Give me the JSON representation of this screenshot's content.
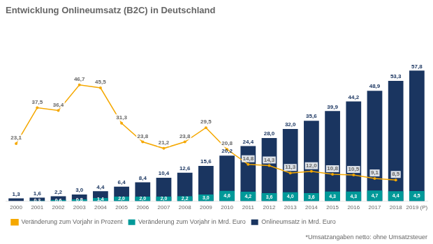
{
  "chart_data": {
    "type": "bar",
    "title": "Entwicklung Onlineumsatz (B2C) in Deutschland",
    "categories": [
      "2000",
      "2001",
      "2002",
      "2003",
      "2004",
      "2005",
      "2006",
      "2007",
      "2008",
      "2009",
      "2010",
      "2011",
      "2012",
      "2013",
      "2014",
      "2015",
      "2016",
      "2017",
      "2018",
      "2019 (P)"
    ],
    "series": [
      {
        "name": "Onlineumsatz in Mrd. Euro",
        "type": "bar",
        "color": "#1a3560",
        "values": [
          1.3,
          1.6,
          2.2,
          3.0,
          4.4,
          6.4,
          8.4,
          10.4,
          12.6,
          15.6,
          20.2,
          24.4,
          28.0,
          32.0,
          35.6,
          39.9,
          44.2,
          48.9,
          53.3,
          57.8
        ],
        "value_labels": [
          "1,3",
          "1,6",
          "2,2",
          "3,0",
          "4,4",
          "6,4",
          "8,4",
          "10,4",
          "12,6",
          "15,6",
          "20,2",
          "24,4",
          "28,0",
          "32,0",
          "35,6",
          "39,9",
          "44,2",
          "48,9",
          "53,3",
          "57,8"
        ]
      },
      {
        "name": "Veränderung zum Vorjahr in Prozent",
        "type": "line",
        "axis": "y2",
        "color": "#f5a800",
        "marker": "o",
        "values": [
          23.1,
          37.5,
          36.4,
          46.7,
          45.5,
          31.3,
          23.8,
          21.2,
          23.8,
          29.5,
          20.8,
          14.8,
          14.3,
          11.3,
          12.0,
          10.8,
          10.5,
          9.1,
          8.5,
          null
        ],
        "value_labels": [
          "23,1",
          "37,5",
          "36,4",
          "46,7",
          "45,5",
          "31,3",
          "23,8",
          "21,2",
          "23,8",
          "29,5",
          "20,8",
          "14,8",
          "14,3",
          "11,3",
          "12,0",
          "10,8",
          "10,5",
          "9,1",
          "8,5",
          null
        ]
      },
      {
        "name": "Veränderung zum Vorjahr in Mrd. Euro",
        "type": "bar",
        "color": "#009999",
        "values": [
          null,
          0.3,
          0.6,
          0.8,
          1.4,
          2.0,
          2.0,
          2.0,
          2.2,
          3.0,
          4.6,
          4.2,
          3.6,
          4.0,
          3.6,
          4.3,
          4.3,
          4.7,
          4.4,
          4.5
        ],
        "value_labels": [
          null,
          "0,3",
          "0,6",
          "0,8",
          "1,4",
          "2,0",
          "2,0",
          "2,0",
          "2,2",
          "3,0",
          "4,6",
          "4,2",
          "3,6",
          "4,0",
          "3,6",
          "4,3",
          "4,3",
          "4,7",
          "4,4",
          "4,5"
        ]
      }
    ],
    "ylim": [
      0,
      75
    ],
    "y2lim": [
      0,
      68
    ],
    "tick_labels": "x",
    "grid": false,
    "data_labels": true,
    "legend": "bottom",
    "annotations": [
      "*Umsatzangaben netto: ohne Umsatzsteuer"
    ]
  }
}
